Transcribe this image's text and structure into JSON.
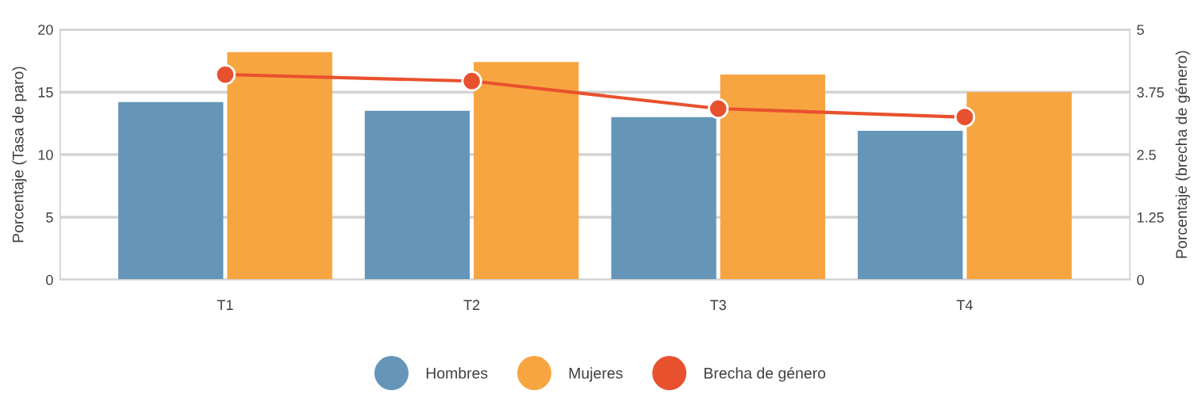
{
  "chart_data": {
    "type": "bar",
    "categories": [
      "T1",
      "T2",
      "T3",
      "T4"
    ],
    "series": [
      {
        "name": "Hombres",
        "color": "#6596b8",
        "values": [
          14.2,
          13.5,
          13.0,
          11.9
        ]
      },
      {
        "name": "Mujeres",
        "color": "#f7a541",
        "values": [
          18.2,
          17.4,
          16.4,
          15.0
        ]
      },
      {
        "name": "Brecha de género",
        "type": "line",
        "axis": "y2",
        "color": "#e8512e",
        "values": [
          4.1,
          3.97,
          3.42,
          3.25
        ]
      }
    ],
    "ylabel": "Porcentaje (Tasa de paro)",
    "y2label": "Porcentaje (brecha de género)",
    "ylim": [
      0,
      20
    ],
    "yticks": [
      0,
      5,
      10,
      15,
      20
    ],
    "y2lim": [
      0,
      5
    ],
    "y2ticks": [
      0,
      1.25,
      2.5,
      3.75,
      5
    ],
    "grid": "y",
    "legend": "bottom",
    "marker": "circle"
  }
}
